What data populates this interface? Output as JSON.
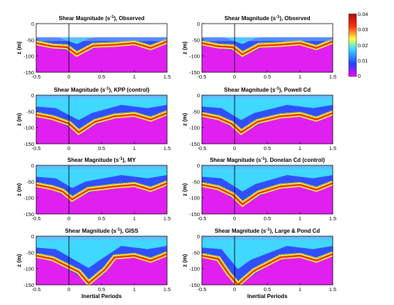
{
  "chart_data": {
    "type": "heatmap",
    "colorbar": {
      "ticks": [
        "0.04",
        "0.03",
        "0.02",
        "0.01",
        "0"
      ],
      "range": [
        0,
        0.04
      ],
      "colors": [
        "#ff00ff",
        "#2040ff",
        "#40e0ff",
        "#ffff40",
        "#ff3010",
        "#b01010"
      ]
    },
    "common": {
      "xlim": [
        -0.5,
        1.5
      ],
      "ylim": [
        -150,
        0
      ],
      "xticks": [
        "-0.5",
        "0",
        "0.5",
        "1",
        "1.5"
      ],
      "yticks": [
        "0",
        "-50",
        "-100",
        "-150"
      ],
      "ylabel": "z (m)",
      "xlabel": "Inertial Periods"
    },
    "panels": [
      {
        "id": "observed-left",
        "title_a": "Shear Magnitude (s",
        "title_b": "), Observed",
        "observed": true,
        "valley_x": 0.12,
        "valley_depth": -90,
        "has_xlabel": false
      },
      {
        "id": "observed-right",
        "title_a": "Shear Magnitude (s",
        "title_b": "), Observed",
        "observed": true,
        "valley_x": 0.12,
        "valley_depth": -90,
        "has_xlabel": false
      },
      {
        "id": "kpp",
        "title_a": "Shear Magnitude (s",
        "title_b": "), KPP (control)",
        "observed": false,
        "valley_x": 0.15,
        "valley_depth": -110,
        "has_xlabel": false
      },
      {
        "id": "powell",
        "title_a": "Shear Magnitude (s",
        "title_b": "), Powell Cd",
        "observed": false,
        "valley_x": 0.1,
        "valley_depth": -110,
        "has_xlabel": false
      },
      {
        "id": "my",
        "title_a": "Shear Magnitude (s",
        "title_b": "), MY",
        "observed": false,
        "valley_x": 0.05,
        "valley_depth": -100,
        "has_xlabel": false
      },
      {
        "id": "donelan",
        "title_a": "Shear Magnitude (s",
        "title_b": "). Donelan Cd (control)",
        "observed": false,
        "valley_x": 0.12,
        "valley_depth": -115,
        "has_xlabel": false
      },
      {
        "id": "giss",
        "title_a": "Shear Magnitude (s",
        "title_b": "), GISS",
        "observed": false,
        "valley_x": 0.3,
        "valley_depth": -140,
        "has_xlabel": true
      },
      {
        "id": "large-pond",
        "title_a": "Shear Magnitude (s",
        "title_b": "), Large & Pond Cd",
        "observed": false,
        "valley_x": 0.05,
        "valley_depth": -145,
        "has_xlabel": true
      }
    ],
    "title_superscript": "-1"
  }
}
